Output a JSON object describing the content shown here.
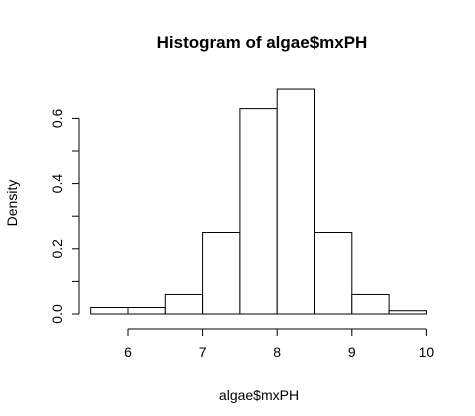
{
  "chart_data": {
    "type": "bar",
    "title": "Histogram of algae$mxPH",
    "xlabel": "algae$mxPH",
    "ylabel": "Density",
    "bins": [
      {
        "x0": 5.5,
        "x1": 6.0,
        "density": 0.02
      },
      {
        "x0": 6.0,
        "x1": 6.5,
        "density": 0.02
      },
      {
        "x0": 6.5,
        "x1": 7.0,
        "density": 0.06
      },
      {
        "x0": 7.0,
        "x1": 7.5,
        "density": 0.25
      },
      {
        "x0": 7.5,
        "x1": 8.0,
        "density": 0.63
      },
      {
        "x0": 8.0,
        "x1": 8.5,
        "density": 0.69
      },
      {
        "x0": 8.5,
        "x1": 9.0,
        "density": 0.25
      },
      {
        "x0": 9.0,
        "x1": 9.5,
        "density": 0.06
      },
      {
        "x0": 9.5,
        "x1": 10.0,
        "density": 0.01
      }
    ],
    "xlim": [
      5.5,
      10.0
    ],
    "ylim": [
      0,
      0.7
    ],
    "x_ticks": [
      6,
      7,
      8,
      9,
      10
    ],
    "x_tick_labels": [
      "6",
      "7",
      "8",
      "9",
      "10"
    ],
    "y_ticks": [
      0,
      0.1,
      0.2,
      0.3,
      0.4,
      0.5,
      0.6
    ],
    "y_tick_labels": [
      "0.0",
      "",
      "0.2",
      "",
      "0.4",
      "",
      "0.6"
    ],
    "grid": false,
    "colors": {
      "bar_fill": "#ffffff",
      "bar_stroke": "#000000"
    }
  }
}
